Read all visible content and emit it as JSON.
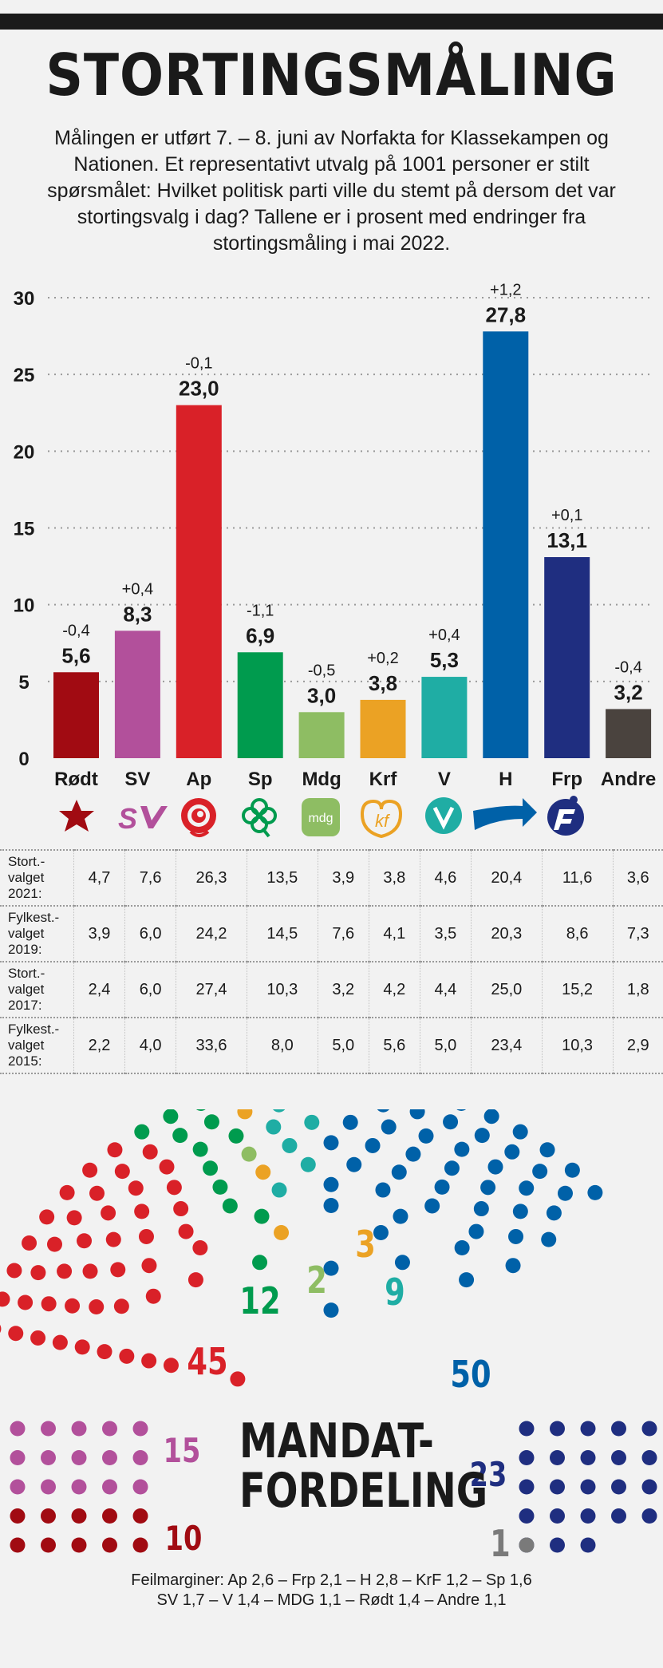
{
  "title": "STORTINGSMÅLING",
  "subtitle": "Målingen er utført 7. – 8. juni av Norfakta for Klassekampen og Nationen. Et representativt utvalg på 1001 personer er stilt spørsmålet: Hvilket politisk parti ville du stemt på dersom det var stortingsvalg i dag? Tallene er i prosent med endringer fra stortingsmåling i mai 2022.",
  "chart_data": {
    "type": "bar",
    "categories": [
      "Rødt",
      "SV",
      "Ap",
      "Sp",
      "Mdg",
      "Krf",
      "V",
      "H",
      "Frp",
      "Andre"
    ],
    "values": [
      5.6,
      8.3,
      23.0,
      6.9,
      3.0,
      3.8,
      5.3,
      27.8,
      13.1,
      3.2
    ],
    "value_labels": [
      "5,6",
      "8,3",
      "23,0",
      "6,9",
      "3,0",
      "3,8",
      "5,3",
      "27,8",
      "13,1",
      "3,2"
    ],
    "change_labels": [
      "-0,4",
      "+0,4",
      "-0,1",
      "-1,1",
      "-0,5",
      "+0,2",
      "+0,4",
      "+1,2",
      "+0,1",
      "-0,4"
    ],
    "colors": [
      "#a10b12",
      "#b2509b",
      "#d92128",
      "#009b4e",
      "#8ebd63",
      "#eba224",
      "#1fada4",
      "#0061a8",
      "#1f2e80",
      "#4a433e"
    ],
    "ylim": [
      0,
      30
    ],
    "yticks": [
      0,
      5,
      10,
      15,
      20,
      25,
      30
    ],
    "grid": true
  },
  "party_icons": [
    "star-icon",
    "sv-logo-icon",
    "rose-icon",
    "clover-icon",
    "mdg-logo-icon",
    "krf-logo-icon",
    "v-logo-icon",
    "arrow-icon",
    "frp-logo-icon"
  ],
  "mdg_logo_text": "mdg",
  "history_table": {
    "rows": [
      {
        "label": [
          "Stort.-",
          "valget",
          "2021:"
        ],
        "values": [
          "4,7",
          "7,6",
          "26,3",
          "13,5",
          "3,9",
          "3,8",
          "4,6",
          "20,4",
          "11,6",
          "3,6"
        ]
      },
      {
        "label": [
          "Fylkest.-",
          "valget",
          "2019:"
        ],
        "values": [
          "3,9",
          "6,0",
          "24,2",
          "14,5",
          "7,6",
          "4,1",
          "3,5",
          "20,3",
          "8,6",
          "7,3"
        ]
      },
      {
        "label": [
          "Stort.-",
          "valget",
          "2017:"
        ],
        "values": [
          "2,4",
          "6,0",
          "27,4",
          "10,3",
          "3,2",
          "4,2",
          "4,4",
          "25,0",
          "15,2",
          "1,8"
        ]
      },
      {
        "label": [
          "Fylkest.-",
          "valget",
          "2015:"
        ],
        "values": [
          "2,2",
          "4,0",
          "33,6",
          "8,0",
          "5,0",
          "5,6",
          "5,0",
          "23,4",
          "10,3",
          "2,9"
        ]
      }
    ]
  },
  "seat_distribution": {
    "title_lines": [
      "MANDAT-",
      "FORDELING"
    ],
    "parties": [
      {
        "party": "Rødt",
        "seats": 10,
        "label": "10",
        "color": "#a10b12"
      },
      {
        "party": "SV",
        "seats": 15,
        "label": "15",
        "color": "#b2509b"
      },
      {
        "party": "Ap",
        "seats": 45,
        "label": "45",
        "color": "#d92128"
      },
      {
        "party": "Sp",
        "seats": 12,
        "label": "12",
        "color": "#009b4e"
      },
      {
        "party": "Mdg",
        "seats": 2,
        "label": "2",
        "color": "#8ebd63"
      },
      {
        "party": "Krf",
        "seats": 3,
        "label": "3",
        "color": "#eba224"
      },
      {
        "party": "V",
        "seats": 9,
        "label": "9",
        "color": "#1fada4"
      },
      {
        "party": "H",
        "seats": 50,
        "label": "50",
        "color": "#0061a8"
      },
      {
        "party": "Frp",
        "seats": 23,
        "label": "23",
        "color": "#1f2e80"
      },
      {
        "party": "Andre",
        "seats": 1,
        "label": "1",
        "color": "#7a7a7a"
      }
    ]
  },
  "footer_lines": [
    "Feilmarginer: Ap  2,6 – Frp 2,1 – H 2,8 – KrF 1,2 – Sp 1,6",
    "SV 1,7 – V 1,4 – MDG 1,1 – Rødt 1,4 – Andre 1,1"
  ]
}
